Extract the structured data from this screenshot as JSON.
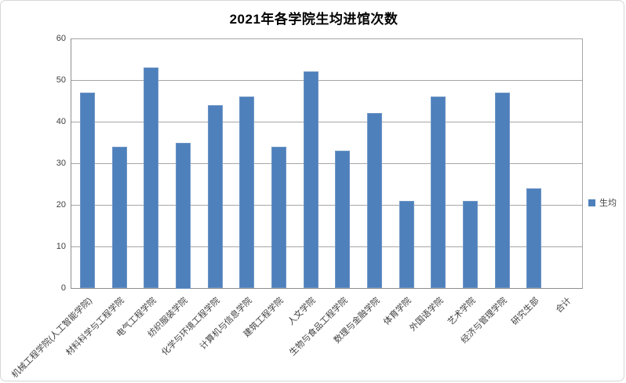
{
  "chart_data": {
    "type": "bar",
    "title": "2021年各学院生均进馆次数",
    "series_name": "生均",
    "categories": [
      "机械工程学院(人工智能学院)",
      "材料科学与工程学院",
      "电气工程学院",
      "纺织服装学院",
      "化学与环境工程学院",
      "计算机与信息学院",
      "建筑工程学院",
      "人文学院",
      "生物与食品工程学院",
      "数理与金融学院",
      "体育学院",
      "外国语学院",
      "艺术学院",
      "经济与管理学院",
      "研究生部",
      "合计"
    ],
    "values": [
      47,
      34,
      53,
      35,
      44,
      46,
      34,
      52,
      33,
      42,
      21,
      46,
      21,
      47,
      24,
      null
    ],
    "xlabel": "",
    "ylabel": "",
    "ylim": [
      0,
      60
    ],
    "ytick_step": 10,
    "grid": true,
    "legend_position": "right",
    "colors": {
      "bar_fill": "#4e80bc",
      "bar_edge": "#6d95c5",
      "gridline": "#a6a6a6",
      "axis_line": "#8e8e8e",
      "tick_text": "#3f3f3f",
      "title_text": "#000000"
    }
  }
}
